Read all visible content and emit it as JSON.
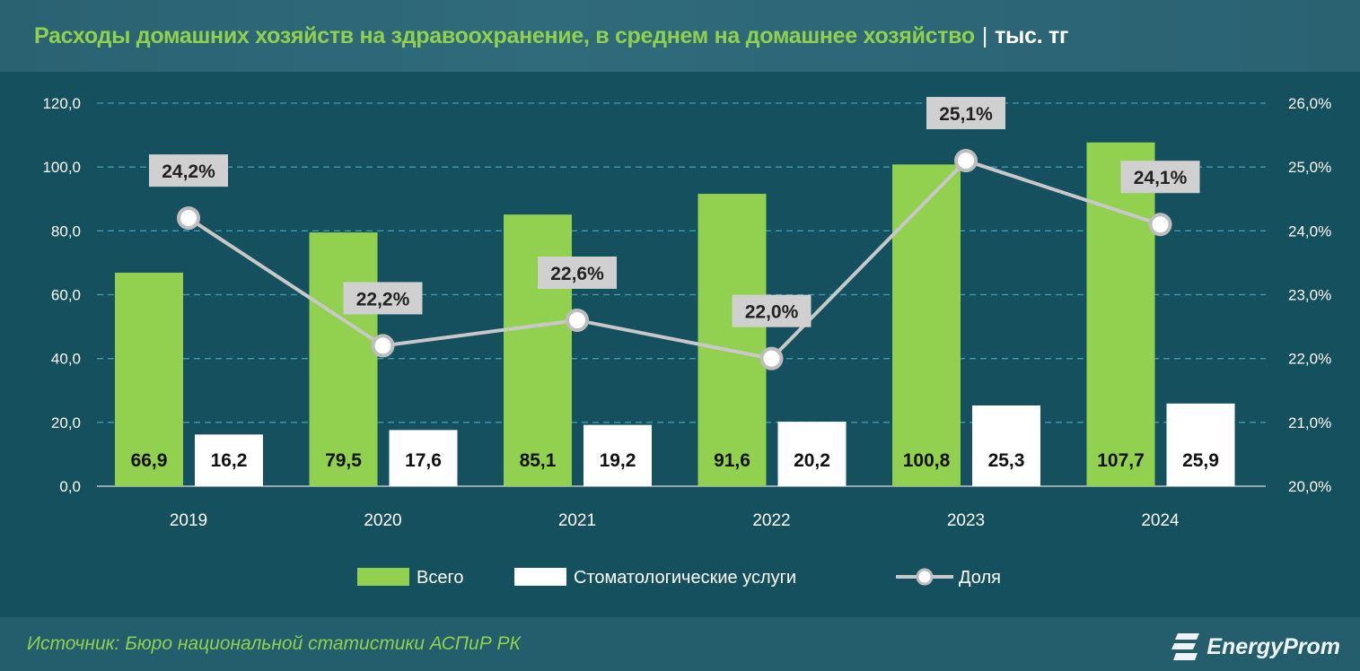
{
  "header": {
    "title": "Расходы домашних хозяйств на здравоохранение, в среднем на домашнее хозяйство",
    "separator": "|",
    "unit": "тыс. тг"
  },
  "footer": {
    "source": "Источник: Бюро национальной статистики АСПиР РК",
    "logo": "EnergyProm"
  },
  "colors": {
    "total": "#92d050",
    "dental": "#ffffff",
    "share": "#c8c8c8",
    "background": "#15505f",
    "title": "#8fd14f"
  },
  "chart_data": {
    "type": "bar+line",
    "categories": [
      "2019",
      "2020",
      "2021",
      "2022",
      "2023",
      "2024"
    ],
    "series": [
      {
        "name": "Всего",
        "type": "bar",
        "axis": "left",
        "values": [
          66.9,
          79.5,
          85.1,
          91.6,
          100.8,
          107.7
        ],
        "labels": [
          "66,9",
          "79,5",
          "85,1",
          "91,6",
          "100,8",
          "107,7"
        ]
      },
      {
        "name": "Стоматологические услуги",
        "type": "bar",
        "axis": "left",
        "values": [
          16.2,
          17.6,
          19.2,
          20.2,
          25.3,
          25.9
        ],
        "labels": [
          "16,2",
          "17,6",
          "19,2",
          "20,2",
          "25,3",
          "25,9"
        ]
      },
      {
        "name": "Доля",
        "type": "line",
        "axis": "right",
        "values": [
          24.2,
          22.2,
          22.6,
          22.0,
          25.1,
          24.1
        ],
        "labels": [
          "24,2%",
          "22,2%",
          "22,6%",
          "22,0%",
          "25,1%",
          "24,1%"
        ]
      }
    ],
    "yleft": {
      "range": [
        0,
        120
      ],
      "ticks": [
        "0,0",
        "20,0",
        "40,0",
        "60,0",
        "80,0",
        "100,0",
        "120,0"
      ]
    },
    "yright": {
      "range": [
        20,
        26
      ],
      "ticks": [
        "20,0%",
        "21,0%",
        "22,0%",
        "23,0%",
        "24,0%",
        "25,0%",
        "26,0%"
      ]
    },
    "grid": "horizontal dashed",
    "legend": "bottom"
  }
}
